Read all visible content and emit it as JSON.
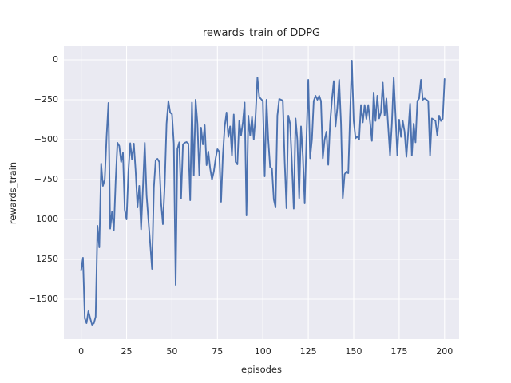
{
  "colors": {
    "line": "#4c72b0",
    "plot_background": "#eaeaf2",
    "gridline": "#ffffff",
    "text": "#262626",
    "figure_background": "#ffffff"
  },
  "chart_data": {
    "type": "line",
    "title": "rewards_train of DDPG",
    "xlabel": "episodes",
    "ylabel": "rewards_train",
    "xlim": [
      -9.5,
      208
    ],
    "ylim": [
      -1750,
      85
    ],
    "xticks": [
      0,
      25,
      50,
      75,
      100,
      125,
      150,
      175,
      200
    ],
    "yticks": [
      0,
      -250,
      -500,
      -750,
      -1000,
      -1250,
      -1500
    ],
    "grid": true,
    "legend_position": "none",
    "series": [
      {
        "name": "rewards_train",
        "x_start": 0,
        "x_step": 1,
        "values": [
          -1320,
          -1240,
          -1620,
          -1650,
          -1575,
          -1620,
          -1660,
          -1650,
          -1610,
          -1040,
          -1175,
          -650,
          -790,
          -750,
          -480,
          -270,
          -1058,
          -950,
          -1067,
          -750,
          -520,
          -540,
          -640,
          -583,
          -940,
          -1000,
          -700,
          -522,
          -625,
          -525,
          -700,
          -925,
          -790,
          -1062,
          -800,
          -520,
          -850,
          -1000,
          -1150,
          -1310,
          -800,
          -630,
          -620,
          -640,
          -900,
          -1030,
          -780,
          -400,
          -258,
          -330,
          -340,
          -525,
          -1410,
          -558,
          -517,
          -870,
          -530,
          -520,
          -515,
          -525,
          -880,
          -267,
          -725,
          -250,
          -400,
          -725,
          -425,
          -530,
          -410,
          -660,
          -575,
          -680,
          -750,
          -700,
          -620,
          -560,
          -575,
          -890,
          -600,
          -420,
          -330,
          -483,
          -417,
          -600,
          -342,
          -640,
          -655,
          -383,
          -475,
          -390,
          -267,
          -975,
          -350,
          -475,
          -358,
          -500,
          -350,
          -110,
          -233,
          -245,
          -258,
          -730,
          -250,
          -500,
          -672,
          -680,
          -875,
          -925,
          -350,
          -245,
          -250,
          -255,
          -630,
          -930,
          -350,
          -400,
          -650,
          -933,
          -367,
          -500,
          -867,
          -417,
          -600,
          -900,
          -500,
          -125,
          -617,
          -500,
          -258,
          -225,
          -250,
          -225,
          -258,
          -617,
          -500,
          -450,
          -658,
          -400,
          -250,
          -133,
          -417,
          -300,
          -125,
          -400,
          -867,
          -717,
          -700,
          -710,
          -350,
          -5,
          -383,
          -492,
          -480,
          -500,
          -283,
          -392,
          -283,
          -370,
          -283,
          -390,
          -508,
          -205,
          -383,
          -225,
          -367,
          -330,
          -142,
          -350,
          -242,
          -420,
          -600,
          -400,
          -113,
          -340,
          -600,
          -375,
          -483,
          -383,
          -450,
          -608,
          -450,
          -275,
          -600,
          -400,
          -517,
          -258,
          -242,
          -125,
          -250,
          -242,
          -250,
          -258,
          -600,
          -367,
          -375,
          -383,
          -475,
          -350,
          -383,
          -370,
          -120
        ]
      }
    ]
  }
}
